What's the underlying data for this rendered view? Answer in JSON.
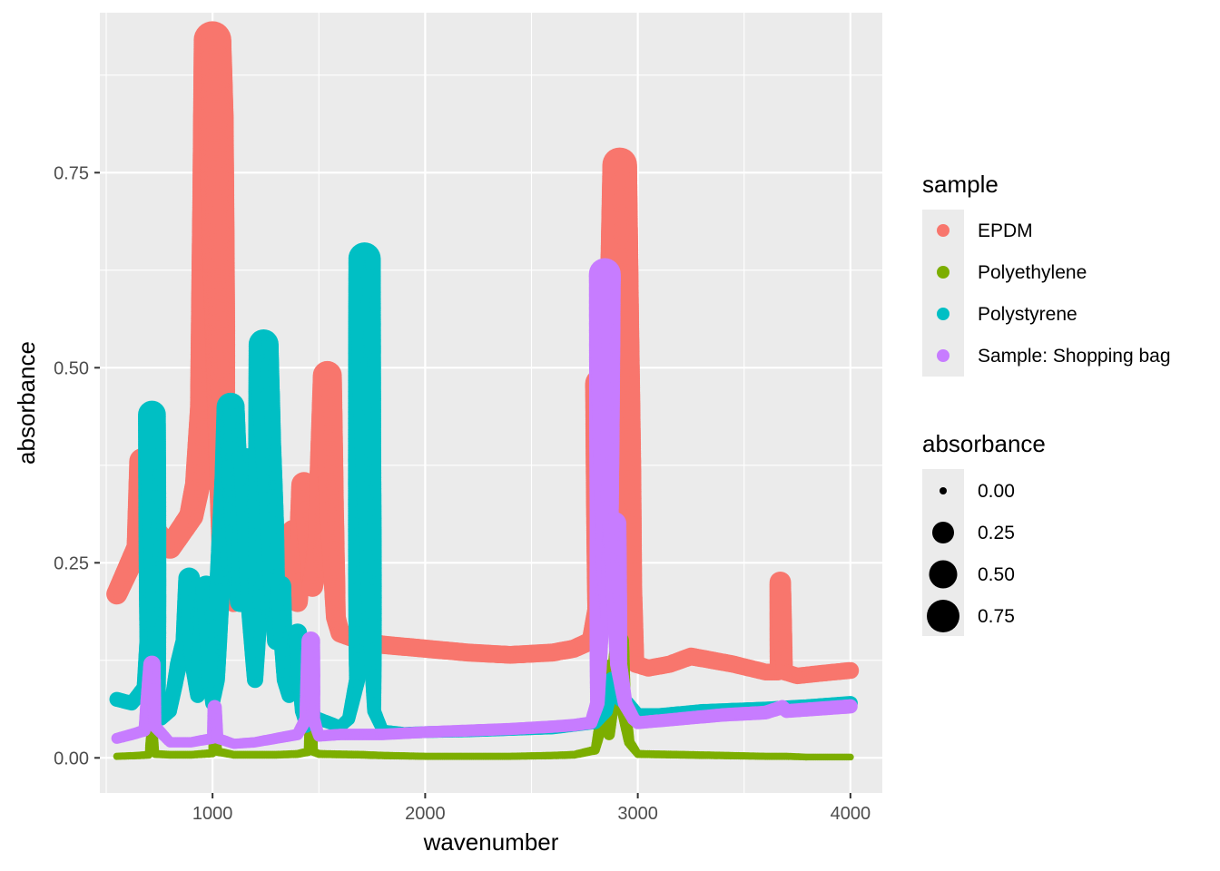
{
  "chart_data": {
    "type": "scatter",
    "xlabel": "wavenumber",
    "ylabel": "absorbance",
    "xlim": [
      470,
      4150
    ],
    "ylim": [
      -0.045,
      0.955
    ],
    "x_ticks": [
      1000,
      2000,
      3000,
      4000
    ],
    "x_tick_labels": [
      "1000",
      "2000",
      "3000",
      "4000"
    ],
    "y_ticks": [
      0.0,
      0.25,
      0.5,
      0.75
    ],
    "y_tick_labels": [
      "0.00",
      "0.25",
      "0.50",
      "0.75"
    ],
    "grid": true,
    "legend_position": "right",
    "color_legend": {
      "title": "sample",
      "entries": [
        "EPDM",
        "Polyethylene",
        "Polystyrene",
        "Sample: Shopping bag"
      ]
    },
    "size_legend": {
      "title": "absorbance",
      "values": [
        0.0,
        0.25,
        0.5,
        0.75
      ],
      "labels": [
        "0.00",
        "0.25",
        "0.50",
        "0.75"
      ]
    },
    "colors": {
      "panel": "#EBEBEB",
      "grid": "#FFFFFF",
      "axis_text": "#4D4D4D",
      "tick": "#333333",
      "legend_key": "#EBEBEB"
    },
    "series": [
      {
        "name": "EPDM",
        "color": "#F8766D",
        "points": [
          [
            550,
            0.21
          ],
          [
            600,
            0.24
          ],
          [
            650,
            0.27
          ],
          [
            670,
            0.38
          ],
          [
            690,
            0.29
          ],
          [
            730,
            0.29
          ],
          [
            760,
            0.28
          ],
          [
            800,
            0.27
          ],
          [
            850,
            0.29
          ],
          [
            900,
            0.31
          ],
          [
            930,
            0.35
          ],
          [
            960,
            0.45
          ],
          [
            985,
            0.72
          ],
          [
            1000,
            0.92
          ],
          [
            1015,
            0.82
          ],
          [
            1035,
            0.55
          ],
          [
            1050,
            0.25
          ],
          [
            1070,
            0.21
          ],
          [
            1100,
            0.2
          ],
          [
            1130,
            0.32
          ],
          [
            1150,
            0.2
          ],
          [
            1200,
            0.19
          ],
          [
            1250,
            0.21
          ],
          [
            1300,
            0.22
          ],
          [
            1350,
            0.27
          ],
          [
            1380,
            0.29
          ],
          [
            1400,
            0.2
          ],
          [
            1430,
            0.35
          ],
          [
            1450,
            0.3
          ],
          [
            1470,
            0.22
          ],
          [
            1500,
            0.27
          ],
          [
            1540,
            0.49
          ],
          [
            1560,
            0.32
          ],
          [
            1580,
            0.18
          ],
          [
            1600,
            0.16
          ],
          [
            1650,
            0.155
          ],
          [
            1700,
            0.15
          ],
          [
            1800,
            0.145
          ],
          [
            2000,
            0.14
          ],
          [
            2200,
            0.135
          ],
          [
            2400,
            0.132
          ],
          [
            2600,
            0.135
          ],
          [
            2700,
            0.14
          ],
          [
            2780,
            0.15
          ],
          [
            2810,
            0.19
          ],
          [
            2820,
            0.48
          ],
          [
            2835,
            0.35
          ],
          [
            2850,
            0.3
          ],
          [
            2870,
            0.4
          ],
          [
            2890,
            0.55
          ],
          [
            2915,
            0.76
          ],
          [
            2935,
            0.55
          ],
          [
            2955,
            0.37
          ],
          [
            2970,
            0.22
          ],
          [
            2990,
            0.12
          ],
          [
            3050,
            0.115
          ],
          [
            3150,
            0.12
          ],
          [
            3250,
            0.13
          ],
          [
            3350,
            0.125
          ],
          [
            3450,
            0.12
          ],
          [
            3600,
            0.11
          ],
          [
            3660,
            0.11
          ],
          [
            3670,
            0.225
          ],
          [
            3690,
            0.11
          ],
          [
            3750,
            0.105
          ],
          [
            3850,
            0.108
          ],
          [
            4000,
            0.112
          ]
        ]
      },
      {
        "name": "Polyethylene",
        "color": "#7CAE00",
        "points": [
          [
            550,
            0.002
          ],
          [
            650,
            0.003
          ],
          [
            700,
            0.004
          ],
          [
            715,
            0.03
          ],
          [
            730,
            0.005
          ],
          [
            800,
            0.004
          ],
          [
            900,
            0.004
          ],
          [
            1000,
            0.006
          ],
          [
            1010,
            0.03
          ],
          [
            1025,
            0.008
          ],
          [
            1100,
            0.004
          ],
          [
            1300,
            0.004
          ],
          [
            1400,
            0.005
          ],
          [
            1450,
            0.008
          ],
          [
            1462,
            0.04
          ],
          [
            1475,
            0.008
          ],
          [
            1500,
            0.005
          ],
          [
            1700,
            0.004
          ],
          [
            1800,
            0.003
          ],
          [
            2000,
            0.002
          ],
          [
            2200,
            0.002
          ],
          [
            2400,
            0.002
          ],
          [
            2600,
            0.003
          ],
          [
            2700,
            0.004
          ],
          [
            2800,
            0.01
          ],
          [
            2840,
            0.06
          ],
          [
            2850,
            0.115
          ],
          [
            2865,
            0.03
          ],
          [
            2880,
            0.08
          ],
          [
            2915,
            0.15
          ],
          [
            2935,
            0.06
          ],
          [
            2960,
            0.02
          ],
          [
            3000,
            0.005
          ],
          [
            3200,
            0.004
          ],
          [
            3400,
            0.003
          ],
          [
            3600,
            0.002
          ],
          [
            3700,
            0.002
          ],
          [
            3800,
            0.001
          ],
          [
            4000,
            0.001
          ]
        ]
      },
      {
        "name": "Polystyrene",
        "color": "#00BFC4",
        "points": [
          [
            550,
            0.075
          ],
          [
            620,
            0.07
          ],
          [
            680,
            0.09
          ],
          [
            700,
            0.15
          ],
          [
            715,
            0.44
          ],
          [
            730,
            0.25
          ],
          [
            745,
            0.07
          ],
          [
            760,
            0.05
          ],
          [
            800,
            0.06
          ],
          [
            840,
            0.12
          ],
          [
            870,
            0.15
          ],
          [
            890,
            0.23
          ],
          [
            910,
            0.12
          ],
          [
            930,
            0.08
          ],
          [
            950,
            0.15
          ],
          [
            970,
            0.22
          ],
          [
            990,
            0.1
          ],
          [
            1000,
            0.07
          ],
          [
            1020,
            0.1
          ],
          [
            1030,
            0.2
          ],
          [
            1050,
            0.28
          ],
          [
            1070,
            0.36
          ],
          [
            1085,
            0.45
          ],
          [
            1100,
            0.38
          ],
          [
            1130,
            0.2
          ],
          [
            1150,
            0.3
          ],
          [
            1160,
            0.38
          ],
          [
            1180,
            0.2
          ],
          [
            1200,
            0.1
          ],
          [
            1220,
            0.25
          ],
          [
            1240,
            0.53
          ],
          [
            1260,
            0.4
          ],
          [
            1280,
            0.3
          ],
          [
            1300,
            0.15
          ],
          [
            1320,
            0.22
          ],
          [
            1340,
            0.1
          ],
          [
            1360,
            0.08
          ],
          [
            1380,
            0.12
          ],
          [
            1400,
            0.16
          ],
          [
            1420,
            0.06
          ],
          [
            1440,
            0.04
          ],
          [
            1450,
            0.05
          ],
          [
            1460,
            0.08
          ],
          [
            1480,
            0.05
          ],
          [
            1500,
            0.05
          ],
          [
            1550,
            0.045
          ],
          [
            1600,
            0.04
          ],
          [
            1640,
            0.05
          ],
          [
            1680,
            0.1
          ],
          [
            1700,
            0.4
          ],
          [
            1715,
            0.64
          ],
          [
            1730,
            0.4
          ],
          [
            1760,
            0.06
          ],
          [
            1800,
            0.035
          ],
          [
            1900,
            0.032
          ],
          [
            2000,
            0.033
          ],
          [
            2200,
            0.034
          ],
          [
            2400,
            0.036
          ],
          [
            2600,
            0.038
          ],
          [
            2800,
            0.045
          ],
          [
            2850,
            0.06
          ],
          [
            2880,
            0.1
          ],
          [
            2920,
            0.075
          ],
          [
            2950,
            0.07
          ],
          [
            3000,
            0.055
          ],
          [
            3100,
            0.055
          ],
          [
            3300,
            0.06
          ],
          [
            3500,
            0.062
          ],
          [
            3600,
            0.063
          ],
          [
            3800,
            0.066
          ],
          [
            4000,
            0.07
          ]
        ]
      },
      {
        "name": "Sample: Shopping bag",
        "color": "#C77CFF",
        "points": [
          [
            550,
            0.025
          ],
          [
            620,
            0.03
          ],
          [
            680,
            0.035
          ],
          [
            715,
            0.12
          ],
          [
            730,
            0.04
          ],
          [
            800,
            0.02
          ],
          [
            900,
            0.02
          ],
          [
            1000,
            0.025
          ],
          [
            1010,
            0.065
          ],
          [
            1025,
            0.025
          ],
          [
            1100,
            0.018
          ],
          [
            1200,
            0.02
          ],
          [
            1300,
            0.025
          ],
          [
            1400,
            0.03
          ],
          [
            1440,
            0.05
          ],
          [
            1462,
            0.15
          ],
          [
            1475,
            0.05
          ],
          [
            1500,
            0.028
          ],
          [
            1600,
            0.03
          ],
          [
            1800,
            0.03
          ],
          [
            2000,
            0.033
          ],
          [
            2200,
            0.035
          ],
          [
            2400,
            0.037
          ],
          [
            2600,
            0.04
          ],
          [
            2700,
            0.042
          ],
          [
            2780,
            0.045
          ],
          [
            2810,
            0.07
          ],
          [
            2830,
            0.3
          ],
          [
            2845,
            0.62
          ],
          [
            2855,
            0.25
          ],
          [
            2870,
            0.18
          ],
          [
            2890,
            0.3
          ],
          [
            2910,
            0.12
          ],
          [
            2940,
            0.07
          ],
          [
            2980,
            0.05
          ],
          [
            3000,
            0.045
          ],
          [
            3200,
            0.05
          ],
          [
            3400,
            0.055
          ],
          [
            3600,
            0.058
          ],
          [
            3680,
            0.065
          ],
          [
            3700,
            0.06
          ],
          [
            3800,
            0.062
          ],
          [
            4000,
            0.066
          ]
        ]
      }
    ]
  }
}
